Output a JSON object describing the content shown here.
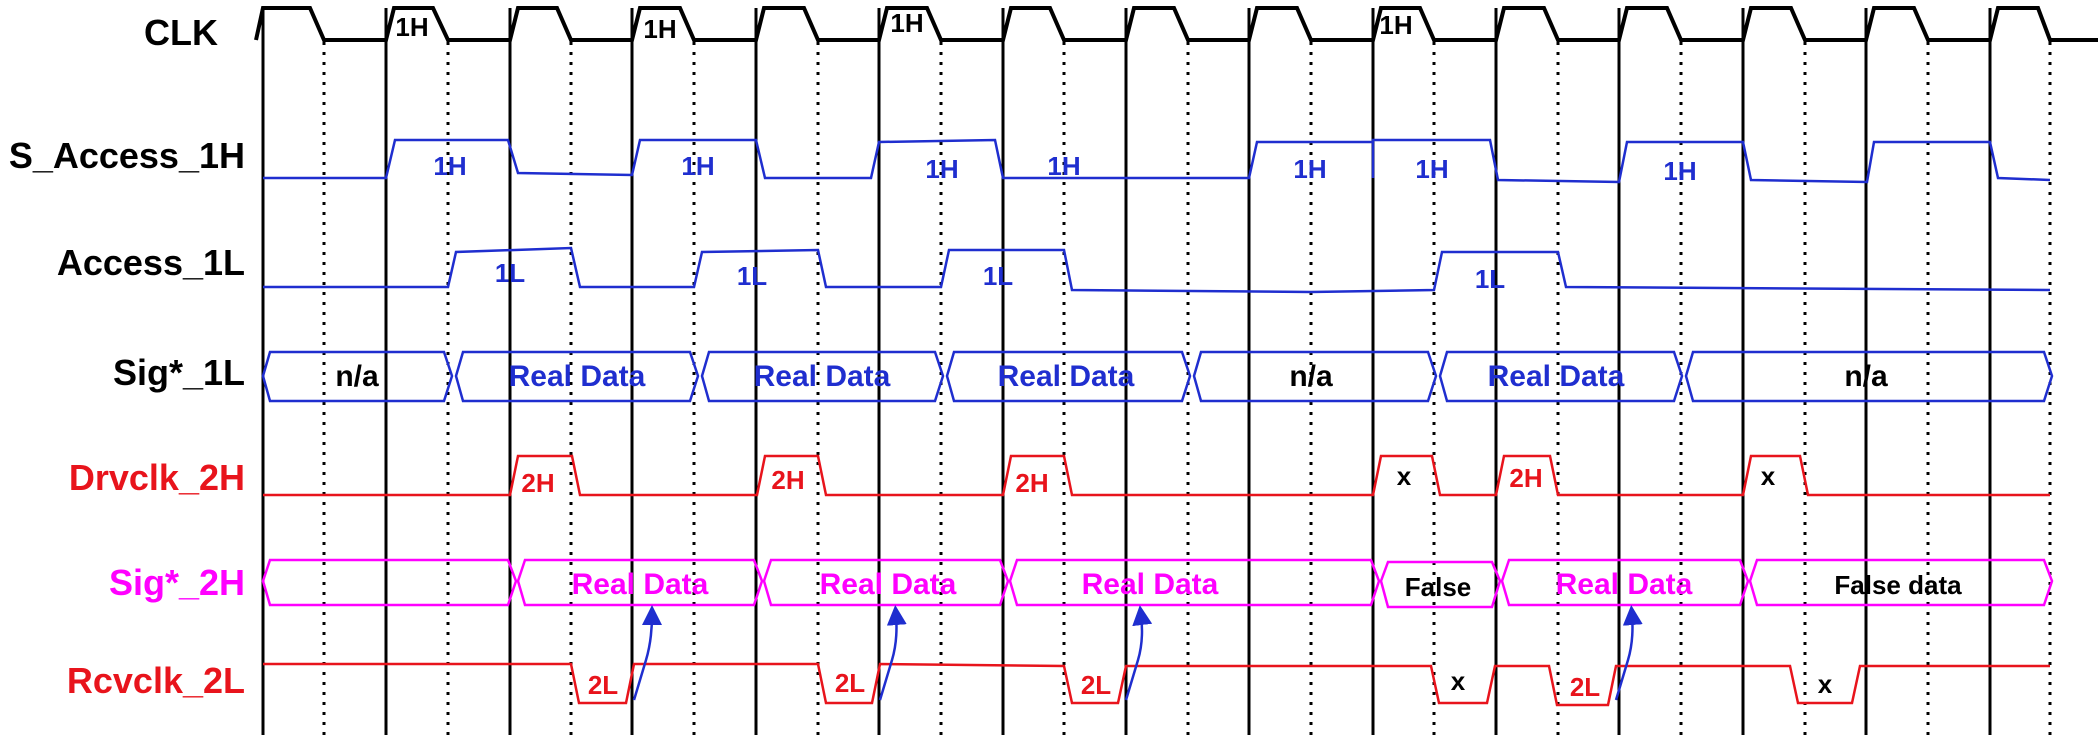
{
  "colors": {
    "black": "#000000",
    "blue": "#1f2ecf",
    "red": "#e8141c",
    "magenta": "#ff00ff"
  },
  "signals": [
    {
      "id": "clk",
      "label": "CLK",
      "color": "black"
    },
    {
      "id": "s_access_1h",
      "label": "S_Access_1H",
      "color": "black"
    },
    {
      "id": "access_1l",
      "label": "Access_1L",
      "color": "black"
    },
    {
      "id": "sig_1l",
      "label": "Sig*_1L",
      "color": "black"
    },
    {
      "id": "drvclk_2h",
      "label": "Drvclk_2H",
      "color": "red"
    },
    {
      "id": "sig_2h",
      "label": "Sig*_2H",
      "color": "magenta"
    },
    {
      "id": "rcvclk_2l",
      "label": "Rcvclk_2L",
      "color": "red"
    }
  ],
  "clk_labels": [
    "1H",
    "1H",
    "1H",
    "1H"
  ],
  "s_access_1h_labels": [
    "1H",
    "1H",
    "1H",
    "1H",
    "1H",
    "1H",
    "1H"
  ],
  "access_1l_labels": [
    "1L",
    "1L",
    "1L",
    "1L"
  ],
  "sig_1l_segments": [
    "n/a",
    "Real Data",
    "Real Data",
    "Real Data",
    "n/a",
    "Real Data",
    "n/a"
  ],
  "drvclk_2h_labels": [
    "2H",
    "2H",
    "2H",
    "x",
    "2H",
    "x"
  ],
  "sig_2h_segments": [
    "",
    "Real Data",
    "Real Data",
    "Real Data",
    "False",
    "Real Data",
    "False data"
  ],
  "rcvclk_2l_labels": [
    "2L",
    "2L",
    "2L",
    "x",
    "2L",
    "x"
  ]
}
